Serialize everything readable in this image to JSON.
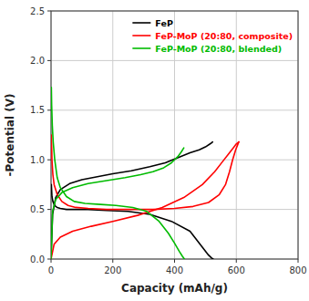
{
  "chart_data": {
    "type": "line",
    "xlabel": "Capacity (mAh/g)",
    "ylabel": "-Potential (V)",
    "xlim": [
      0,
      800
    ],
    "ylim": [
      0.0,
      2.5
    ],
    "xticks": [
      0,
      200,
      400,
      600,
      800
    ],
    "yticks": [
      {
        "value": 0.0,
        "label": "0.0"
      },
      0.5,
      {
        "value": 1.0,
        "label": "1.0"
      },
      1.5,
      {
        "value": 2.0,
        "label": "2.0"
      },
      2.5
    ],
    "grid": true,
    "legend": "upper right",
    "series": [
      {
        "name": "FeP",
        "color": "#000000",
        "x": [
          1,
          3,
          6,
          10,
          15,
          20,
          30,
          50,
          80,
          120,
          180,
          250,
          320,
          390,
          450,
          490,
          510,
          520,
          525
        ],
        "values": [
          0.75,
          0.63,
          0.58,
          0.55,
          0.53,
          0.52,
          0.51,
          0.5,
          0.5,
          0.5,
          0.49,
          0.48,
          0.45,
          0.38,
          0.28,
          0.12,
          0.04,
          0.01,
          0.0
        ]
      },
      {
        "color": "#000000",
        "x": [
          0,
          5,
          15,
          30,
          60,
          100,
          150,
          200,
          260,
          320,
          370,
          410,
          450,
          480,
          500,
          515,
          520,
          523
        ],
        "values": [
          0.0,
          0.45,
          0.62,
          0.7,
          0.76,
          0.8,
          0.83,
          0.86,
          0.89,
          0.93,
          0.97,
          1.02,
          1.07,
          1.1,
          1.13,
          1.16,
          1.17,
          1.18
        ]
      },
      {
        "name": "FeP-MoP (20:80, composite)",
        "color": "#ff0000",
        "x": [
          1,
          3,
          6,
          10,
          20,
          35,
          55,
          80,
          120,
          180,
          250,
          330,
          400,
          460,
          510,
          545,
          565,
          578,
          588,
          598,
          608
        ],
        "values": [
          1.25,
          1.0,
          0.85,
          0.75,
          0.65,
          0.58,
          0.54,
          0.52,
          0.51,
          0.5,
          0.5,
          0.5,
          0.51,
          0.53,
          0.57,
          0.65,
          0.75,
          0.88,
          1.0,
          1.1,
          1.18
        ]
      },
      {
        "color": "#ff0000",
        "x": [
          0,
          10,
          30,
          70,
          130,
          200,
          280,
          360,
          430,
          490,
          530,
          555,
          575,
          590,
          600,
          608
        ],
        "values": [
          0.0,
          0.15,
          0.22,
          0.28,
          0.33,
          0.38,
          0.44,
          0.52,
          0.62,
          0.75,
          0.88,
          0.98,
          1.06,
          1.12,
          1.16,
          1.18
        ]
      },
      {
        "name": "FeP-MoP (20:80, blended)",
        "color": "#00bb00",
        "x": [
          1,
          2,
          4,
          7,
          12,
          20,
          30,
          50,
          75,
          110,
          160,
          210,
          265,
          310,
          350,
          380,
          400,
          415,
          425,
          432
        ],
        "values": [
          1.73,
          1.55,
          1.35,
          1.18,
          1.0,
          0.82,
          0.72,
          0.63,
          0.58,
          0.56,
          0.55,
          0.54,
          0.52,
          0.48,
          0.38,
          0.26,
          0.16,
          0.08,
          0.03,
          0.0
        ]
      },
      {
        "color": "#00bb00",
        "x": [
          0,
          5,
          15,
          35,
          70,
          120,
          180,
          240,
          290,
          330,
          365,
          390,
          410,
          422,
          430
        ],
        "values": [
          0.0,
          0.48,
          0.6,
          0.67,
          0.72,
          0.76,
          0.79,
          0.82,
          0.85,
          0.88,
          0.92,
          0.97,
          1.03,
          1.08,
          1.12
        ]
      }
    ]
  }
}
